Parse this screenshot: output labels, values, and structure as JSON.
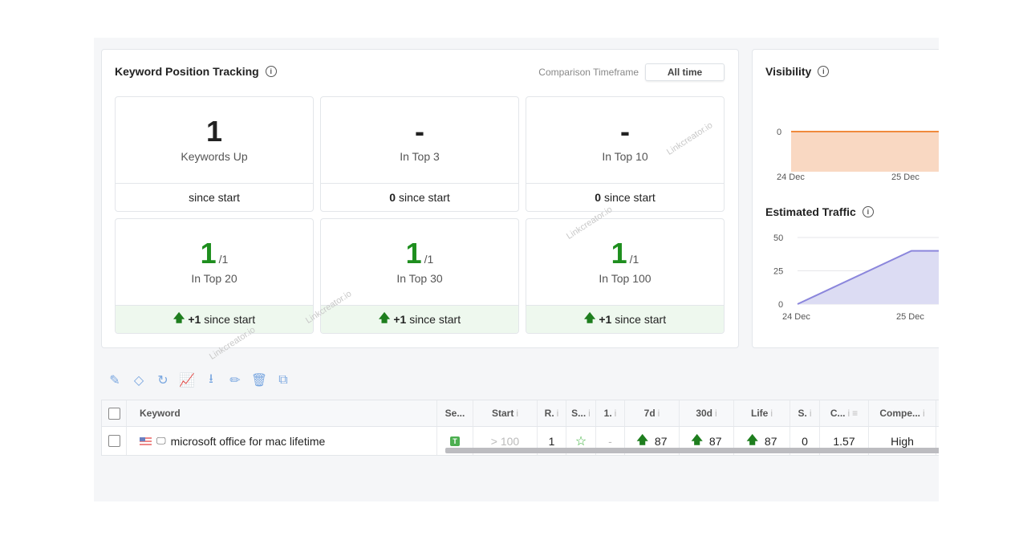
{
  "kpt": {
    "title": "Keyword Position Tracking",
    "comparison_label": "Comparison Timeframe",
    "comparison_value": "All time",
    "stats": [
      {
        "value": "1",
        "total": "",
        "label": "Keywords Up",
        "foot_bold": "",
        "foot": "since start",
        "highlight": false
      },
      {
        "value": "-",
        "total": "",
        "label": "In Top 3",
        "foot_bold": "0",
        "foot": "since start",
        "highlight": false
      },
      {
        "value": "-",
        "total": "",
        "label": "In Top 10",
        "foot_bold": "0",
        "foot": "since start",
        "highlight": false
      },
      {
        "value": "1",
        "total": "/1",
        "label": "In Top 20",
        "foot_bold": "+1",
        "foot": "since start",
        "highlight": true
      },
      {
        "value": "1",
        "total": "/1",
        "label": "In Top 30",
        "foot_bold": "+1",
        "foot": "since start",
        "highlight": true
      },
      {
        "value": "1",
        "total": "/1",
        "label": "In Top 100",
        "foot_bold": "+1",
        "foot": "since start",
        "highlight": true
      }
    ]
  },
  "watermark": "Linkcreator.io",
  "toolbar": {
    "icons": [
      "edit-icon",
      "tag-icon",
      "refresh-icon",
      "chart-icon",
      "download-icon",
      "pencil-icon",
      "trash-icon",
      "copy-icon"
    ]
  },
  "table": {
    "headers": [
      "Keyword",
      "Se...",
      "Start",
      "R.",
      "S...",
      "1.",
      "7d",
      "30d",
      "Life",
      "S.",
      "C...",
      "Compe..."
    ],
    "rows": [
      {
        "keyword": "microsoft office for mac lifetime",
        "country": "US",
        "se_badge": "T",
        "start": "> 100",
        "r": "1",
        "s": "☆",
        "one": "-",
        "d7": "87",
        "d30": "87",
        "life": "87",
        "s2": "0",
        "c": "1.57",
        "comp": "High"
      }
    ]
  },
  "chart_data": [
    {
      "type": "area",
      "title": "Visibility",
      "x": [
        "24 Dec",
        "25 Dec"
      ],
      "values": [
        0,
        0
      ],
      "yticks": [
        "0"
      ],
      "color": "#f08a3c",
      "fill": "#f9d8c2"
    },
    {
      "type": "area",
      "title": "Estimated Traffic",
      "x": [
        "24 Dec",
        "25 Dec"
      ],
      "values": [
        0,
        40
      ],
      "yticks": [
        "50",
        "25",
        "0"
      ],
      "ylim": [
        0,
        50
      ],
      "grid": true,
      "color": "#8b86dc",
      "fill": "#dcdcf3"
    }
  ]
}
